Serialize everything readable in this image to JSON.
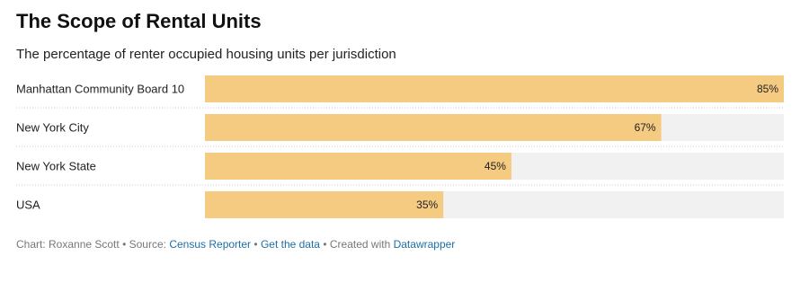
{
  "chart_data": {
    "type": "bar",
    "orientation": "horizontal",
    "title": "The Scope of Rental Units",
    "subtitle": "The percentage of renter occupied housing units per jurisdiction",
    "categories": [
      "Manhattan Community Board 10",
      "New York City",
      "New York State",
      "USA"
    ],
    "values": [
      85,
      67,
      45,
      35
    ],
    "value_labels": [
      "85%",
      "67%",
      "45%",
      "35%"
    ],
    "color": "#f5cb82",
    "xlim": [
      0,
      85
    ]
  },
  "footer": {
    "byline": "Chart: Roxanne Scott",
    "separator": "•",
    "source_label": "Source:",
    "source": "Census Reporter",
    "get_data": "Get the data",
    "created_with": "Created with",
    "tool": "Datawrapper"
  }
}
